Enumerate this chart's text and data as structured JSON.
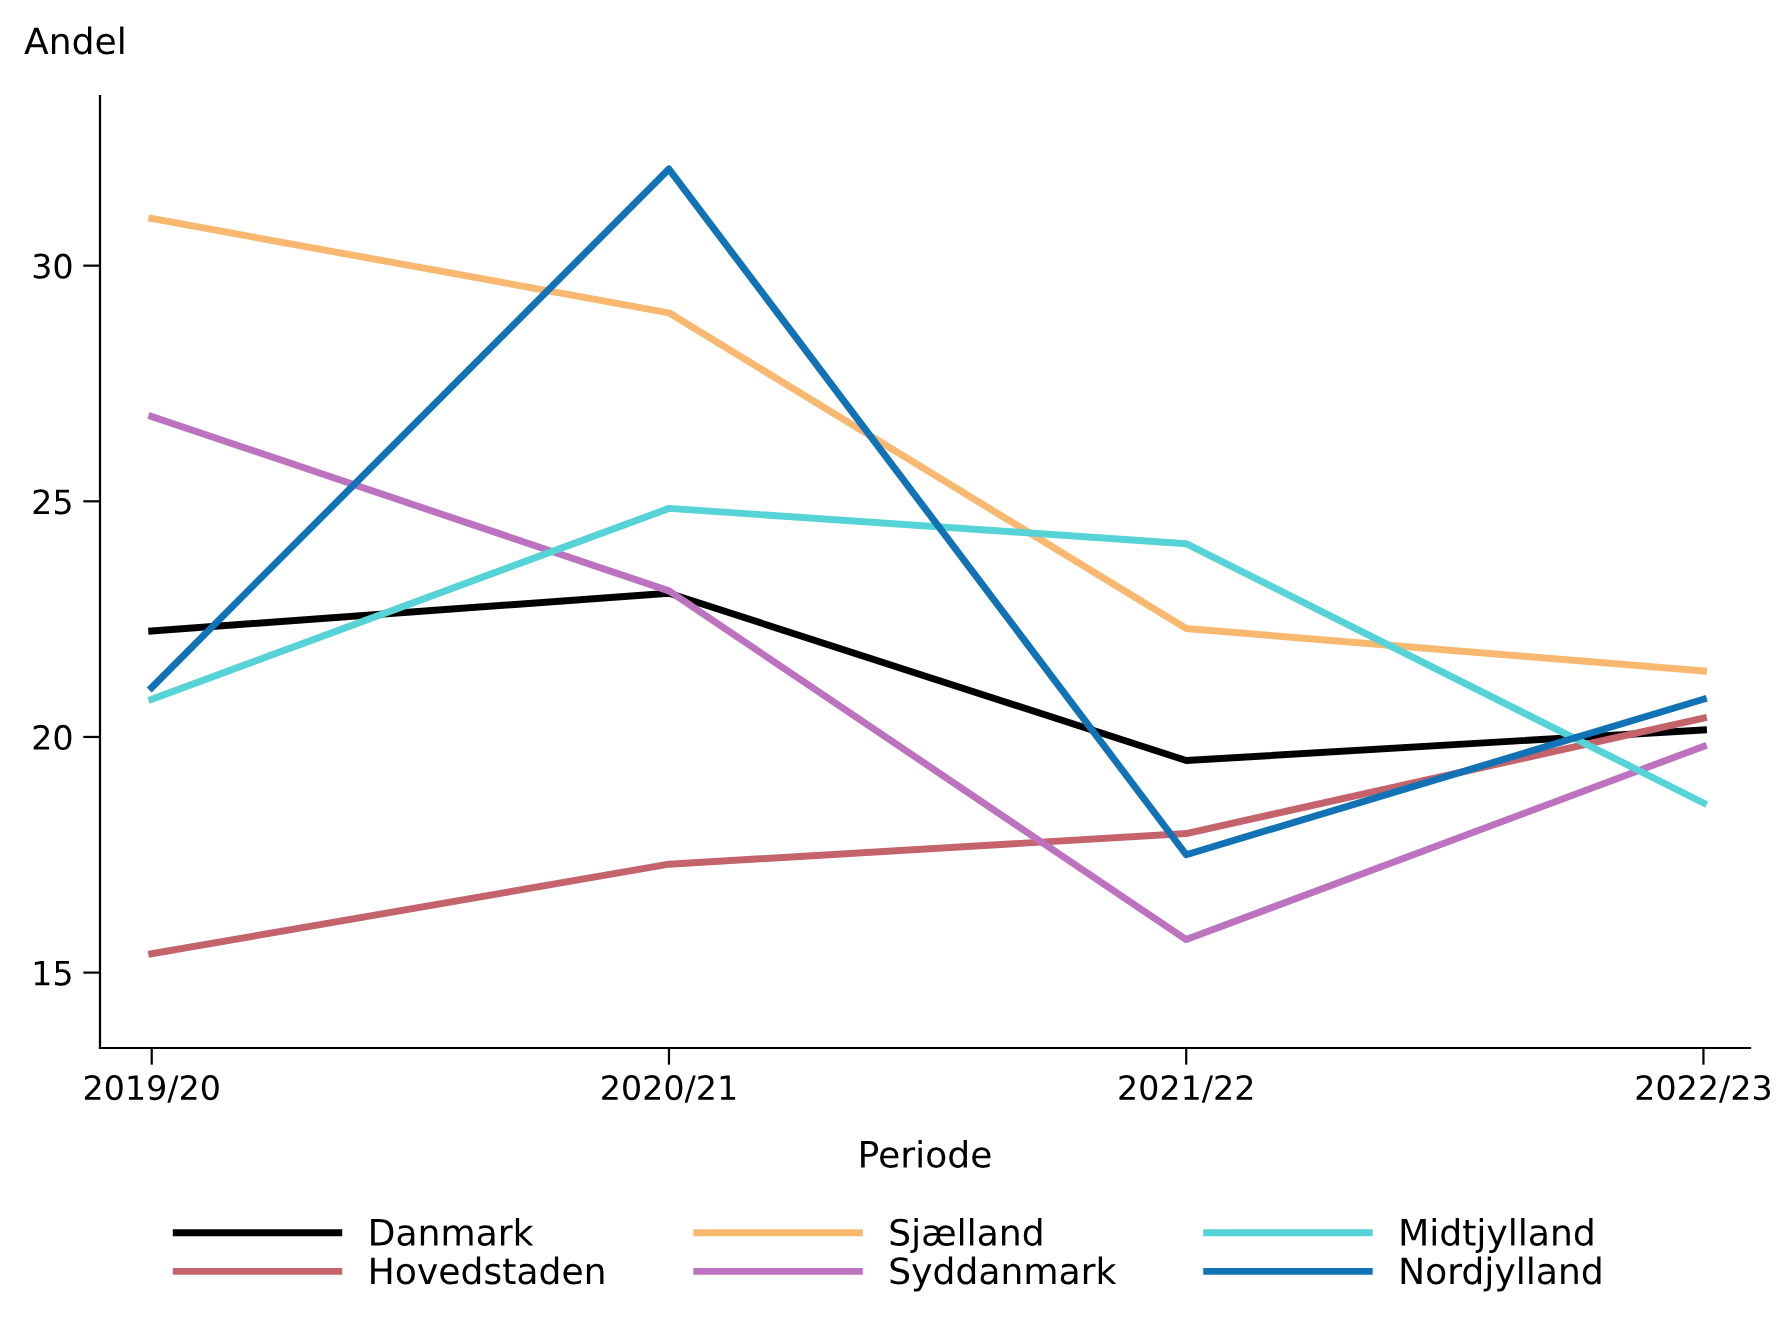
{
  "chart_data": {
    "type": "line",
    "ylabel": "Andel",
    "xlabel": "Periode",
    "categories": [
      "2019/20",
      "2020/21",
      "2021/22",
      "2022/23"
    ],
    "series": [
      {
        "name": "Danmark",
        "color": "#000000",
        "values": [
          22.25,
          23.05,
          19.5,
          20.15
        ]
      },
      {
        "name": "Hovedstaden",
        "color": "#c4636b",
        "values": [
          15.4,
          17.3,
          17.95,
          20.4
        ]
      },
      {
        "name": "Sjælland",
        "color": "#f8b870",
        "values": [
          31.0,
          29.0,
          22.3,
          21.4
        ]
      },
      {
        "name": "Syddanmark",
        "color": "#bd72c0",
        "values": [
          26.8,
          23.1,
          15.7,
          19.8
        ]
      },
      {
        "name": "Midtjylland",
        "color": "#55d3d6",
        "values": [
          20.8,
          24.85,
          24.1,
          18.6
        ]
      },
      {
        "name": "Nordjylland",
        "color": "#1173b5",
        "values": [
          21.05,
          32.05,
          17.5,
          20.8
        ]
      }
    ],
    "ylim": [
      13.4,
      33.6
    ],
    "yticks": [
      15,
      20,
      25,
      30
    ],
    "grid": false,
    "legend": "bottom",
    "line_style": "solid",
    "marker": "none"
  }
}
